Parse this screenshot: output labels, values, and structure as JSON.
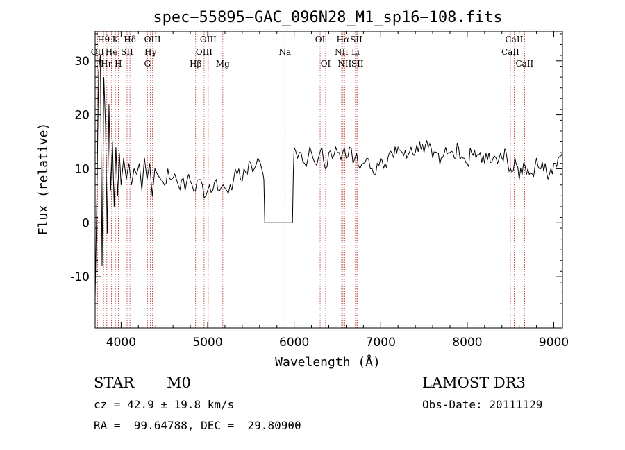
{
  "chart_data": {
    "type": "line",
    "title": "spec−55895−GAC_096N28_M1_sp16−108.fits",
    "xlabel": "Wavelength (Å)",
    "ylabel": "Flux (relative)",
    "xlim": [
      3700,
      9100
    ],
    "ylim": [
      -19.5,
      35.5
    ],
    "xticks": [
      4000,
      5000,
      6000,
      7000,
      8000,
      9000
    ],
    "yticks": [
      -10,
      0,
      10,
      20,
      30
    ],
    "grid": false,
    "spectral_lines": [
      {
        "label": "Hθ",
        "wavelength": 3797,
        "row": 0
      },
      {
        "label": "K",
        "wavelength": 3934,
        "row": 0
      },
      {
        "label": "Hδ",
        "wavelength": 4102,
        "row": 0
      },
      {
        "label": "OIII",
        "wavelength": 4363,
        "row": 0
      },
      {
        "label": "OIII",
        "wavelength": 5007,
        "row": 0
      },
      {
        "label": "OI",
        "wavelength": 6300,
        "row": 0
      },
      {
        "label": "Hα",
        "wavelength": 6563,
        "row": 0
      },
      {
        "label": "SII",
        "wavelength": 6717,
        "row": 0
      },
      {
        "label": "CaII",
        "wavelength": 8542,
        "row": 0
      },
      {
        "label": "OII",
        "wavelength": 3727,
        "row": 1
      },
      {
        "label": "He",
        "wavelength": 3889,
        "row": 1
      },
      {
        "label": "SII",
        "wavelength": 4069,
        "row": 1
      },
      {
        "label": "Hγ",
        "wavelength": 4340,
        "row": 1
      },
      {
        "label": "OIII",
        "wavelength": 4959,
        "row": 1
      },
      {
        "label": "Na",
        "wavelength": 5893,
        "row": 1
      },
      {
        "label": "NII",
        "wavelength": 6548,
        "row": 1
      },
      {
        "label": "Li",
        "wavelength": 6708,
        "row": 1
      },
      {
        "label": "CaII",
        "wavelength": 8498,
        "row": 1
      },
      {
        "label": "Hη",
        "wavelength": 3835,
        "row": 2
      },
      {
        "label": "H",
        "wavelength": 3968,
        "row": 2
      },
      {
        "label": "G",
        "wavelength": 4304,
        "row": 2
      },
      {
        "label": "Hβ",
        "wavelength": 4861,
        "row": 2
      },
      {
        "label": "Mg",
        "wavelength": 5175,
        "row": 2
      },
      {
        "label": "OI",
        "wavelength": 6364,
        "row": 2
      },
      {
        "label": "NII",
        "wavelength": 6583,
        "row": 2
      },
      {
        "label": "SII",
        "wavelength": 6731,
        "row": 2
      },
      {
        "label": "CaII",
        "wavelength": 8662,
        "row": 2
      }
    ],
    "series": [
      {
        "x": [
          3700,
          3720,
          3740,
          3760,
          3780,
          3800,
          3820,
          3840,
          3860,
          3880,
          3900,
          3920,
          3940,
          3960,
          3980,
          4000,
          4030,
          4060,
          4090,
          4120,
          4150,
          4180,
          4210,
          4240,
          4270,
          4300,
          4330,
          4360,
          4390,
          4420,
          4460,
          4500,
          4540,
          4580,
          4620,
          4660,
          4700,
          4740,
          4780,
          4820,
          4860,
          4900,
          4940,
          4980,
          5020,
          5060,
          5100,
          5140,
          5180,
          5220,
          5260,
          5300,
          5340,
          5380,
          5420,
          5460,
          5500,
          5540,
          5580,
          5610,
          5640,
          5650,
          5660,
          5700,
          5800,
          5900,
          5950,
          5970,
          5980,
          5990,
          6000,
          6040,
          6080,
          6120,
          6160,
          6200,
          6240,
          6280,
          6320,
          6360,
          6400,
          6440,
          6480,
          6520,
          6560,
          6600,
          6640,
          6680,
          6720,
          6760,
          6800,
          6840,
          6880,
          6920,
          6960,
          7000,
          7050,
          7100,
          7150,
          7200,
          7250,
          7300,
          7350,
          7400,
          7450,
          7500,
          7550,
          7600,
          7650,
          7700,
          7750,
          7800,
          7850,
          7900,
          7950,
          8000,
          8050,
          8100,
          8150,
          8200,
          8250,
          8300,
          8350,
          8400,
          8450,
          8500,
          8550,
          8600,
          8650,
          8700,
          8750,
          8800,
          8850,
          8900,
          8950,
          9000,
          9050,
          9100
        ],
        "y": [
          -14,
          5,
          28,
          31,
          -8,
          27,
          18,
          -2,
          22,
          6,
          15,
          3,
          14,
          5,
          13,
          7,
          12,
          8,
          11,
          7,
          10,
          9,
          11,
          6,
          12,
          8,
          11,
          5,
          10,
          9,
          8,
          7,
          10,
          8,
          9,
          7,
          8,
          6,
          9,
          7,
          6,
          8,
          7,
          5,
          7,
          6,
          8,
          6,
          7,
          6,
          7,
          8,
          9,
          8,
          10,
          9,
          11,
          10,
          12,
          11,
          9,
          8,
          0,
          0,
          0,
          0,
          0,
          0,
          0,
          9,
          14,
          12,
          13,
          11,
          12,
          13,
          11,
          12,
          14,
          10,
          13,
          12,
          14,
          13,
          13,
          12,
          14,
          11,
          13,
          10,
          11,
          12,
          10,
          9,
          11,
          12,
          11,
          13,
          12,
          14,
          13,
          12,
          14,
          13,
          15,
          13,
          14,
          12,
          13,
          12,
          14,
          13,
          12,
          14,
          12,
          11,
          13,
          12,
          13,
          11,
          13,
          12,
          11,
          12,
          13,
          10,
          12,
          8,
          11,
          10,
          9,
          12,
          10,
          11,
          9,
          11,
          12,
          13
        ]
      }
    ]
  },
  "info": {
    "object_class": "STAR",
    "subclass": "M0",
    "survey": "LAMOST DR3",
    "cz": "cz = 42.9 ± 19.8 km/s",
    "obs_date": "Obs-Date: 20111129",
    "coords": "RA =  99.64788, DEC =  29.80900"
  }
}
